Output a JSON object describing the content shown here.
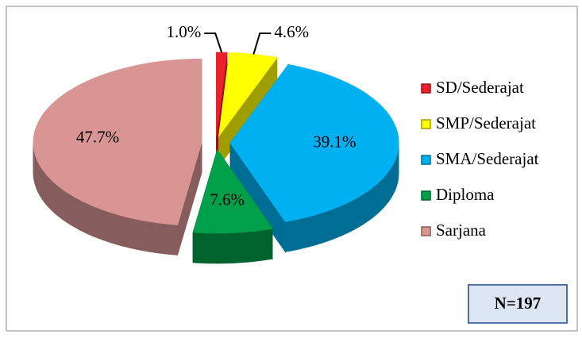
{
  "chart_data": {
    "type": "pie3d",
    "categories": [
      "SD/Sederajat",
      "SMP/Sederajat",
      "SMA/Sederajat",
      "Diploma",
      "Sarjana"
    ],
    "values": [
      1.0,
      4.6,
      39.1,
      7.6,
      47.7
    ],
    "value_labels": [
      "1.0%",
      "4.6%",
      "39.1%",
      "7.6%",
      "47.7%"
    ],
    "colors": [
      "#e8202a",
      "#ffff00",
      "#00b0f0",
      "#00a04a",
      "#d99594"
    ],
    "legend": "right",
    "annotation": "N=197"
  }
}
